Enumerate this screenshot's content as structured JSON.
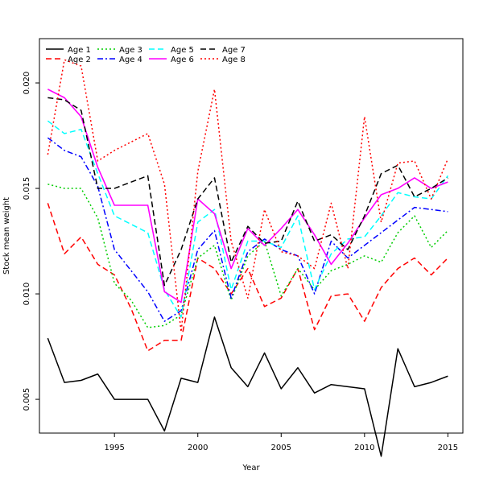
{
  "chart_data": {
    "type": "line",
    "title": "",
    "xlabel": "Year",
    "ylabel": "Stock mean weight",
    "xlim": [
      1990.5,
      2015.9
    ],
    "ylim": [
      0.0034,
      0.0221
    ],
    "x": [
      1991,
      1992,
      1993,
      1994,
      1995,
      1996,
      1997,
      1998,
      1999,
      2000,
      2001,
      2002,
      2003,
      2004,
      2005,
      2006,
      2007,
      2008,
      2009,
      2010,
      2011,
      2012,
      2013,
      2014,
      2015
    ],
    "x_ticks": [
      1995,
      2000,
      2005,
      2010,
      2015
    ],
    "y_ticks": [
      0.005,
      0.01,
      0.015,
      0.02
    ],
    "y_tick_labels": [
      "0.005",
      "0.010",
      "0.015",
      "0.020"
    ],
    "grid": false,
    "legend_position": "top-left",
    "series": [
      {
        "name": "Age 1",
        "color": "#000000",
        "dash": "solid",
        "values": [
          0.0079,
          0.0058,
          0.0059,
          0.0062,
          0.005,
          0.005,
          0.005,
          0.0035,
          0.006,
          0.0058,
          0.0089,
          0.0065,
          0.0056,
          0.0072,
          0.0055,
          0.0065,
          0.0053,
          0.0057,
          0.0056,
          0.0055,
          0.0023,
          0.0074,
          0.0056,
          0.0058,
          0.0061
        ]
      },
      {
        "name": "Age 2",
        "color": "#ff0000",
        "dash": "long-dash",
        "values": [
          0.0143,
          0.0119,
          0.0127,
          0.0114,
          0.0109,
          0.0093,
          0.0073,
          0.0078,
          0.0078,
          0.0117,
          0.0112,
          0.01,
          0.0112,
          0.0094,
          0.0098,
          0.0112,
          0.0083,
          0.0099,
          0.01,
          0.0087,
          0.0103,
          0.0112,
          0.0117,
          0.0109,
          0.0117
        ]
      },
      {
        "name": "Age 3",
        "color": "#00cd00",
        "dash": "dotted",
        "values": [
          0.0152,
          0.015,
          0.015,
          0.0136,
          0.0105,
          0.0097,
          0.0084,
          0.0085,
          0.009,
          0.0117,
          0.0123,
          0.0097,
          0.0118,
          0.0125,
          0.0099,
          0.0112,
          0.0102,
          0.0111,
          0.0114,
          0.0118,
          0.0115,
          0.0129,
          0.0137,
          0.0122,
          0.013
        ]
      },
      {
        "name": "Age 4",
        "color": "#0000ff",
        "dash": "dashdot",
        "values": [
          0.0174,
          0.0168,
          0.0165,
          0.0151,
          0.0121,
          0.0111,
          0.0101,
          0.0087,
          0.0092,
          0.0121,
          0.013,
          0.0098,
          0.012,
          0.0126,
          0.0121,
          0.0118,
          0.01,
          0.0125,
          0.0117,
          0.0123,
          0.0129,
          0.0135,
          0.0141,
          0.014,
          0.0139
        ]
      },
      {
        "name": "Age 5",
        "color": "#00ffff",
        "dash": "long-dash",
        "values": [
          0.0182,
          0.0176,
          0.0178,
          0.0157,
          0.0137,
          0.0133,
          0.0129,
          0.0102,
          0.0089,
          0.0134,
          0.014,
          0.0102,
          0.0125,
          0.0125,
          0.0122,
          0.0137,
          0.0102,
          0.0119,
          0.0126,
          0.0127,
          0.0137,
          0.0148,
          0.0146,
          0.0145,
          0.0156
        ]
      },
      {
        "name": "Age 6",
        "color": "#ff00ff",
        "dash": "solid",
        "values": [
          0.0197,
          0.0193,
          0.0184,
          0.016,
          0.0142,
          0.0142,
          0.0142,
          0.0101,
          0.0096,
          0.0145,
          0.0138,
          0.0112,
          0.0131,
          0.0123,
          0.0131,
          0.014,
          0.0128,
          0.0114,
          0.0124,
          0.0136,
          0.0147,
          0.015,
          0.0155,
          0.015,
          0.0153
        ]
      },
      {
        "name": "Age 7",
        "color": "#000000",
        "dash": "long-dash",
        "values": [
          0.0193,
          0.0192,
          0.0187,
          0.015,
          0.015,
          0.0153,
          0.0156,
          0.0104,
          0.0121,
          0.0145,
          0.0155,
          0.0115,
          0.0132,
          0.0124,
          0.0125,
          0.0144,
          0.0125,
          0.0128,
          0.0121,
          0.0137,
          0.0157,
          0.0161,
          0.0146,
          0.015,
          0.0155
        ]
      },
      {
        "name": "Age 8",
        "color": "#ff0000",
        "dash": "dotted",
        "values": [
          0.0166,
          0.0211,
          0.0208,
          0.0163,
          0.0168,
          0.0172,
          0.0176,
          0.0152,
          0.0082,
          0.0158,
          0.0197,
          0.0125,
          0.0098,
          0.014,
          0.012,
          0.0118,
          0.0112,
          0.0143,
          0.0112,
          0.0184,
          0.0134,
          0.0162,
          0.0163,
          0.0145,
          0.0164
        ]
      }
    ]
  }
}
